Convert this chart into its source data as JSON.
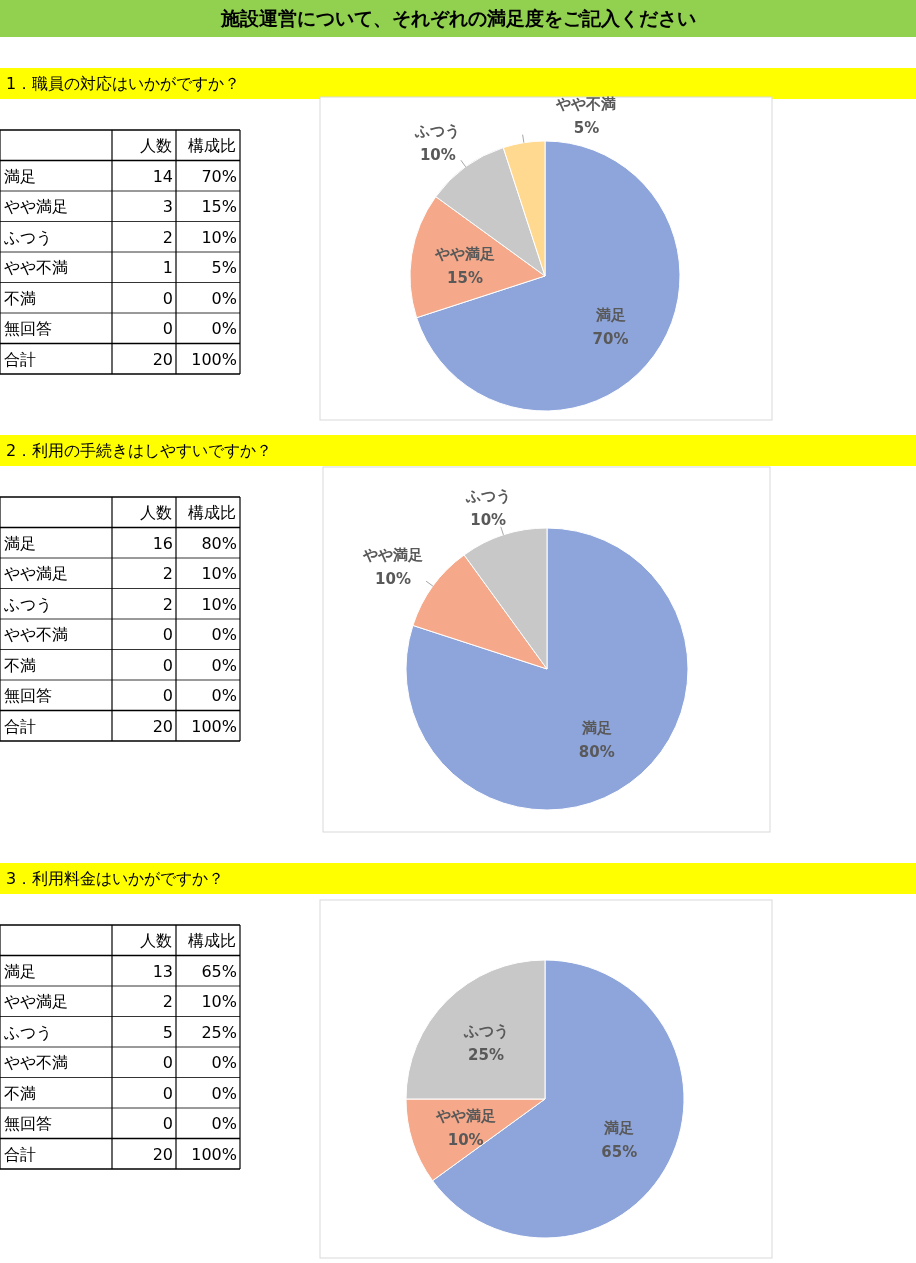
{
  "chart_data": [
    {
      "type": "other",
      "title": "施設運営について、それぞれの満足度をご記入ください"
    },
    {
      "type": "other",
      "title": "1．職員の対応はいかがですか？",
      "categories": [
        "満足",
        "やや満足",
        "ふつう",
        "やや不満",
        "不満",
        "無回答",
        "合計"
      ],
      "data_labels": true,
      "series": [
        {
          "name": "人数",
          "values": [
            14,
            3,
            2,
            1,
            0,
            0,
            20
          ]
        },
        {
          "name": "構成比",
          "values": [
            70,
            15,
            10,
            5,
            0,
            0,
            100
          ],
          "value_labels": [
            "70%",
            "15%",
            "10%",
            "5%",
            "0%",
            "0%",
            "100%"
          ]
        }
      ]
    },
    {
      "type": "pie",
      "categories": [
        "満足",
        "やや満足",
        "ふつう",
        "やや不満"
      ],
      "values": [
        70,
        15,
        10,
        5
      ],
      "colors": [
        "#8ea5dc",
        "#f5a98a",
        "#c8c8c8",
        "#ffd98f"
      ],
      "value_labels": [
        "70%",
        "15%",
        "10%",
        "5%"
      ]
    },
    {
      "type": "other",
      "title": "2．利用の手続きはしやすいですか？",
      "categories": [
        "満足",
        "やや満足",
        "ふつう",
        "やや不満",
        "不満",
        "無回答",
        "合計"
      ],
      "data_labels": true,
      "series": [
        {
          "name": "人数",
          "values": [
            16,
            2,
            2,
            0,
            0,
            0,
            20
          ]
        },
        {
          "name": "構成比",
          "values": [
            80,
            10,
            10,
            0,
            0,
            0,
            100
          ],
          "value_labels": [
            "80%",
            "10%",
            "10%",
            "0%",
            "0%",
            "0%",
            "100%"
          ]
        }
      ]
    },
    {
      "type": "pie",
      "categories": [
        "満足",
        "やや満足",
        "ふつう"
      ],
      "values": [
        80,
        10,
        10
      ],
      "colors": [
        "#8ea5dc",
        "#f5a98a",
        "#c8c8c8"
      ],
      "value_labels": [
        "80%",
        "10%",
        "10%"
      ]
    },
    {
      "type": "other",
      "title": "3．利用料金はいかがですか？",
      "categories": [
        "満足",
        "やや満足",
        "ふつう",
        "やや不満",
        "不満",
        "無回答",
        "合計"
      ],
      "data_labels": true,
      "series": [
        {
          "name": "人数",
          "values": [
            13,
            2,
            5,
            0,
            0,
            0,
            20
          ]
        },
        {
          "name": "構成比",
          "values": [
            65,
            10,
            25,
            0,
            0,
            0,
            100
          ],
          "value_labels": [
            "65%",
            "10%",
            "25%",
            "0%",
            "0%",
            "0%",
            "100%"
          ]
        }
      ]
    },
    {
      "type": "pie",
      "categories": [
        "満足",
        "やや満足",
        "ふつう"
      ],
      "values": [
        65,
        10,
        25
      ],
      "colors": [
        "#8ea5dc",
        "#f5a98a",
        "#c8c8c8"
      ],
      "value_labels": [
        "65%",
        "10%",
        "25%"
      ]
    }
  ]
}
